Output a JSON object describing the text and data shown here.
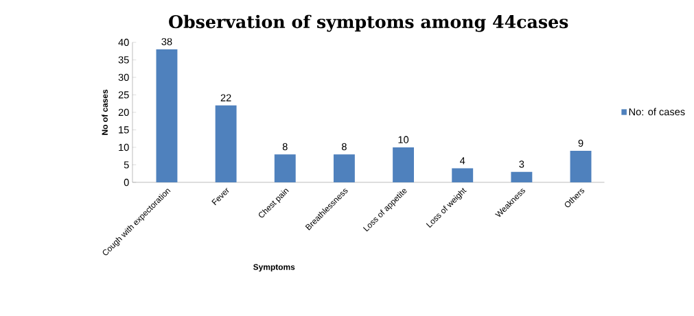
{
  "chart_data": {
    "type": "bar",
    "title": "Observation of symptoms among 44cases",
    "xlabel": "Symptoms",
    "ylabel": "No of cases",
    "categories": [
      "Cough with expectoration",
      "Fever",
      "Chest pain",
      "Breathlessness",
      "Loss of appetite",
      "Loss of weight",
      "Weakness",
      "Others"
    ],
    "series": [
      {
        "name": "No: of cases",
        "color": "#4f81bd",
        "values": [
          38,
          22,
          8,
          8,
          10,
          4,
          3,
          9
        ]
      }
    ],
    "ylim": [
      0,
      40
    ],
    "yticks": [
      0,
      5,
      10,
      15,
      20,
      25,
      30,
      35,
      40
    ],
    "data_labels": true,
    "legend": "right",
    "grid": false
  }
}
